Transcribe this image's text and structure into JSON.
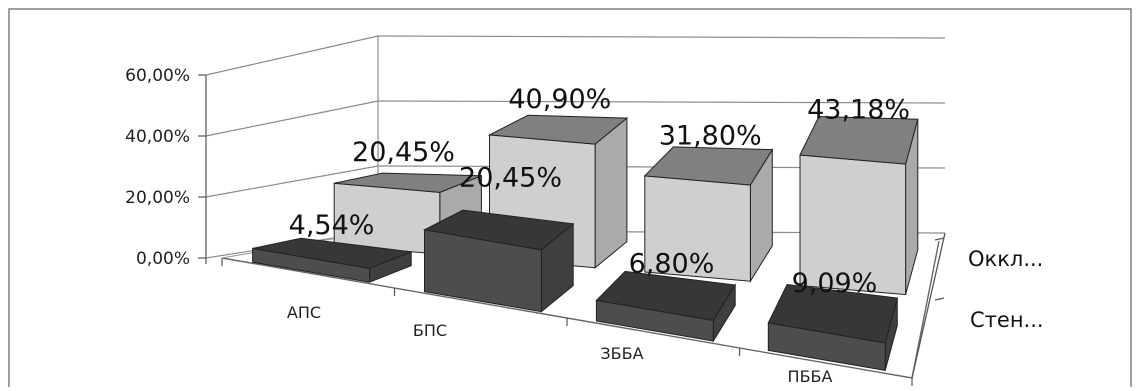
{
  "chart_data": {
    "type": "bar",
    "categories": [
      "АПС",
      "БПС",
      "ЗББА",
      "ПББА"
    ],
    "series": [
      {
        "name": "Стен...",
        "values": [
          4.54,
          20.45,
          6.8,
          9.09
        ],
        "labels": [
          "4,54%",
          "20,45%",
          "6,80%",
          "9,09%"
        ],
        "color": "#4d4d4d"
      },
      {
        "name": "Оккл...",
        "values": [
          20.45,
          40.9,
          31.8,
          43.18
        ],
        "labels": [
          "20,45%",
          "40,90%",
          "31,80%",
          "43,18%"
        ],
        "color": "#cfcfcf"
      }
    ],
    "y_ticks": [
      "0,00%",
      "20,00%",
      "40,00%",
      "60,00%"
    ],
    "ylim": [
      0,
      60
    ],
    "title": "",
    "xlabel": "",
    "ylabel": "",
    "grid": true,
    "chart_style": "3d-column",
    "legend_placement": "right"
  }
}
